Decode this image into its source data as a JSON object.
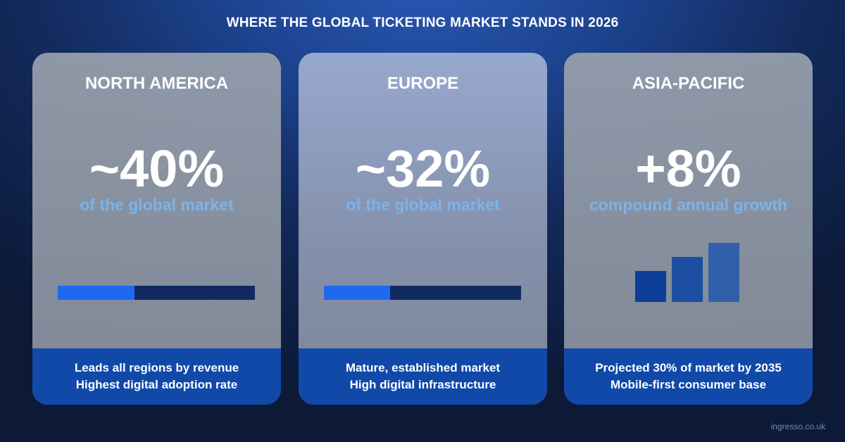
{
  "title": "WHERE THE GLOBAL TICKETING MARKET STANDS IN 2026",
  "cards": [
    {
      "region": "NORTH AMERICA",
      "stat": "~40%",
      "sub": "of the global market",
      "share_bar": 0.39,
      "lines": [
        "Leads all regions by revenue",
        "Highest digital adoption rate"
      ]
    },
    {
      "region": "EUROPE",
      "stat": "~32%",
      "sub": "of the global market",
      "share_bar": 0.335,
      "lines": [
        "Mature, established market",
        "High digital infrastructure"
      ]
    },
    {
      "region": "ASIA-PACIFIC",
      "stat": "+8%",
      "sub": "compound annual growth",
      "growth_bars": [
        0.52,
        0.76,
        1.0
      ],
      "lines": [
        "Projected 30% of market by 2035",
        "Mobile-first consumer base"
      ]
    }
  ],
  "colors": {
    "accent_fill": "#1f68f0",
    "track": "#102a60",
    "subtitle": "#7bb3ea",
    "footer": "#1149a9",
    "growth_bars": [
      "#0e3f98",
      "#1c4fa2",
      "#3160ab"
    ]
  },
  "credit": "ingresso.co.uk"
}
